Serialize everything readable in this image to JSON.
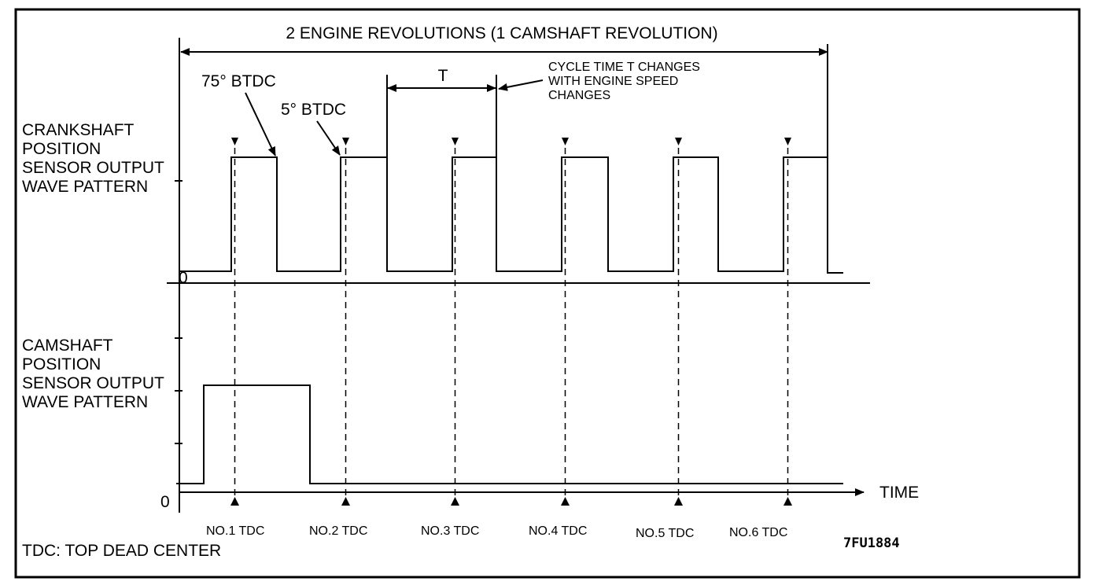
{
  "title": "2 ENGINE REVOLUTIONS (1 CAMSHAFT REVOLUTION)",
  "crankshaft_label": [
    "CRANKSHAFT",
    "POSITION",
    "SENSOR OUTPUT",
    "WAVE PATTERN"
  ],
  "camshaft_label": [
    "CAMSHAFT",
    "POSITION",
    "SENSOR OUTPUT",
    "WAVE PATTERN"
  ],
  "angle_labels": {
    "btdc75": "75° BTDC",
    "btdc5": "5° BTDC"
  },
  "cycle_label": "T",
  "cycle_note": [
    "CYCLE TIME T CHANGES",
    "WITH ENGINE SPEED",
    "CHANGES"
  ],
  "zero_label": "0",
  "time_label": "TIME",
  "tdc_labels": [
    "NO.1 TDC",
    "NO.2 TDC",
    "NO.3 TDC",
    "NO.4 TDC",
    "NO.5 TDC",
    "NO.6 TDC"
  ],
  "footnote": "TDC: TOP DEAD CENTER",
  "figure_code": "7FU1884"
}
